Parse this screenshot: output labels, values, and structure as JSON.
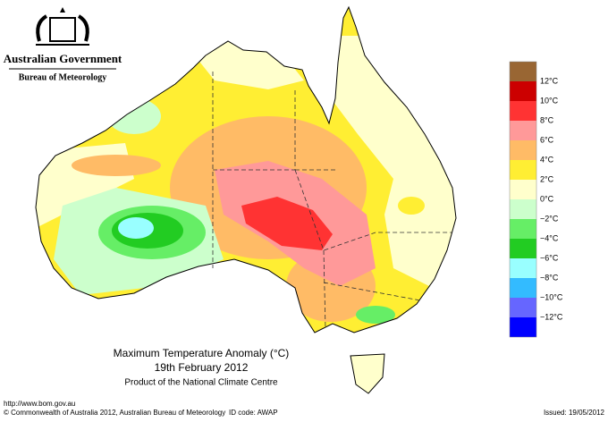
{
  "header": {
    "government": "Australian Government",
    "agency": "Bureau of Meteorology"
  },
  "title": {
    "line1": "Maximum Temperature Anomaly (°C)",
    "line2": "19th February 2012",
    "line3": "Product of the National Climate Centre"
  },
  "legend": {
    "colors": [
      "#996633",
      "#cc0000",
      "#ff3333",
      "#ff9999",
      "#ffbb66",
      "#ffee33",
      "#ffffcc",
      "#ccffcc",
      "#66ee66",
      "#22cc22",
      "#99ffff",
      "#33bbff",
      "#6666ff",
      "#0000ff"
    ],
    "labels": [
      "12°C",
      "10°C",
      "8°C",
      "6°C",
      "4°C",
      "2°C",
      "0°C",
      "−2°C",
      "−4°C",
      "−6°C",
      "−8°C",
      "−10°C",
      "−12°C"
    ]
  },
  "footer": {
    "url": "http://www.bom.gov.au",
    "copyright": "© Commonwealth of Australia 2012, Australian Bureau of Meteorology",
    "id_code": "ID code: AWAP",
    "issued": "Issued: 19/05/2012"
  }
}
